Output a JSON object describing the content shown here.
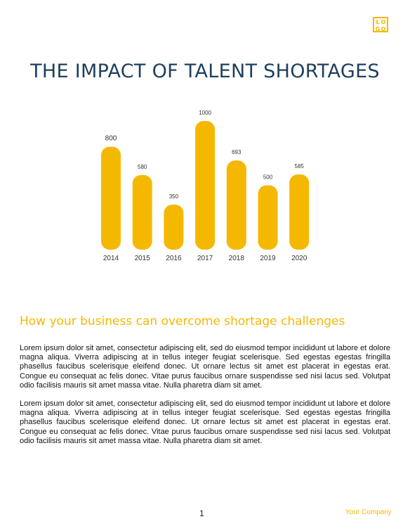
{
  "logo": {
    "letters": [
      "L",
      "O",
      "G",
      "O"
    ]
  },
  "title": "THE IMPACT OF TALENT SHORTAGES",
  "chart_data": {
    "type": "bar",
    "categories": [
      "2014",
      "2015",
      "2016",
      "2017",
      "2018",
      "2019",
      "2020"
    ],
    "values": [
      800,
      580,
      350,
      1000,
      693,
      500,
      585
    ],
    "data_labels": [
      "800",
      "580",
      "350",
      "1000",
      "693",
      "500",
      "585"
    ],
    "ylim": [
      0,
      1000
    ],
    "bar_color": "#f5b800",
    "grid": false,
    "legend": "none"
  },
  "subtitle": "How your business can overcome shortage challenges",
  "paragraphs": [
    "Lorem ipsum dolor sit amet, consectetur adipiscing elit, sed do eiusmod tempor incididunt ut labore et dolore magna aliqua. Viverra adipiscing at in tellus integer feugiat scelerisque. Sed egestas egestas fringilla phasellus faucibus scelerisque eleifend donec. Ut ornare lectus sit amet est placerat in egestas erat. Congue eu consequat ac felis donec. Vitae purus faucibus ornare suspendisse sed nisi lacus sed. Volutpat odio facilisis mauris sit amet massa vitae. Nulla pharetra diam sit amet.",
    "Lorem ipsum dolor sit amet, consectetur adipiscing elit, sed do eiusmod tempor incididunt ut labore et dolore magna aliqua. Viverra adipiscing at in tellus integer feugiat scelerisque. Sed egestas egestas fringilla phasellus faucibus scelerisque eleifend donec. Ut ornare lectus sit amet est placerat in egestas erat. Congue eu consequat ac felis donec. Vitae purus faucibus ornare suspendisse sed nisi lacus sed. Volutpat odio facilisis mauris sit amet massa vitae. Nulla pharetra diam sit amet."
  ],
  "footer": {
    "page_number": "1",
    "company": "Your Company"
  },
  "colors": {
    "accent": "#f5b800",
    "title": "#1f3f5c"
  }
}
